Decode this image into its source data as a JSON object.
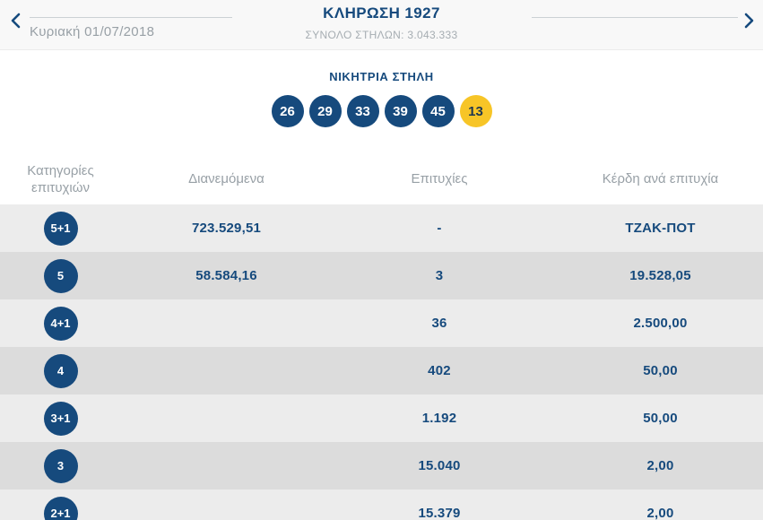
{
  "nav": {
    "prev_icon": "chevron-left-icon",
    "next_icon": "chevron-right-icon",
    "date": "Κυριακή 01/07/2018",
    "title": "ΚΛΗΡΩΣΗ 1927",
    "subtitle": "ΣΥΝΟΛΟ ΣΤΗΛΩΝ: 3.043.333"
  },
  "winning": {
    "heading": "ΝΙΚΗΤΡΙΑ ΣΤΗΛΗ",
    "numbers": [
      "26",
      "29",
      "33",
      "39",
      "45"
    ],
    "bonus": "13"
  },
  "table": {
    "headers": [
      "Κατηγορίες επιτυχιών",
      "Διανεμόμενα",
      "Επιτυχίες",
      "Κέρδη ανά επιτυχία"
    ],
    "rows": [
      {
        "category": "5+1",
        "distributed": "723.529,51",
        "winners": "-",
        "prize": "ΤΖΑΚ-ΠΟΤ"
      },
      {
        "category": "5",
        "distributed": "58.584,16",
        "winners": "3",
        "prize": "19.528,05"
      },
      {
        "category": "4+1",
        "distributed": "",
        "winners": "36",
        "prize": "2.500,00"
      },
      {
        "category": "4",
        "distributed": "",
        "winners": "402",
        "prize": "50,00"
      },
      {
        "category": "3+1",
        "distributed": "",
        "winners": "1.192",
        "prize": "50,00"
      },
      {
        "category": "3",
        "distributed": "",
        "winners": "15.040",
        "prize": "2,00"
      },
      {
        "category": "2+1",
        "distributed": "",
        "winners": "15.379",
        "prize": "2,00"
      }
    ]
  },
  "colors": {
    "blue": "#164a7d",
    "yellow": "#f7c527",
    "bonus_number_text": "#1d3650",
    "row_light": "#ececec",
    "row_dark": "#dcdcdc",
    "topbar_bg": "#f8f8f8",
    "gray_text": "#98a0a6",
    "divider": "#ccd1d5"
  }
}
